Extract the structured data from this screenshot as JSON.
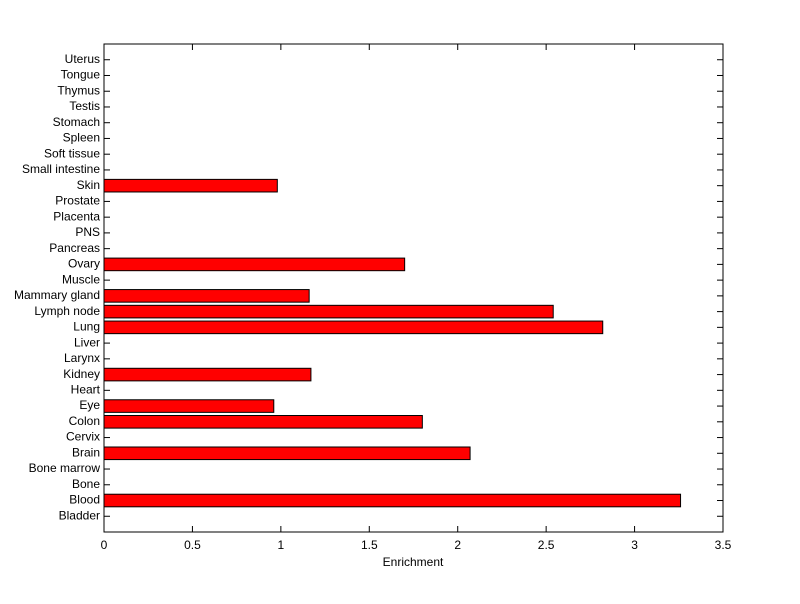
{
  "chart_data": {
    "type": "hbar",
    "xlabel": "Enrichment",
    "categories": [
      "Bladder",
      "Blood",
      "Bone",
      "Bone marrow",
      "Brain",
      "Cervix",
      "Colon",
      "Eye",
      "Heart",
      "Kidney",
      "Larynx",
      "Liver",
      "Lung",
      "Lymph node",
      "Mammary gland",
      "Muscle",
      "Ovary",
      "Pancreas",
      "PNS",
      "Placenta",
      "Prostate",
      "Skin",
      "Small intestine",
      "Soft tissue",
      "Spleen",
      "Stomach",
      "Testis",
      "Thymus",
      "Tongue",
      "Uterus"
    ],
    "values": [
      0,
      3.26,
      0,
      0,
      2.07,
      0,
      1.8,
      0.96,
      0,
      1.17,
      0,
      0,
      2.82,
      2.54,
      1.16,
      0,
      1.7,
      0,
      0,
      0,
      0,
      0.98,
      0,
      0,
      0,
      0,
      0,
      0,
      0,
      0
    ],
    "color": "#ff0000",
    "xlim": [
      0,
      3.5
    ],
    "xticks": [
      0,
      0.5,
      1,
      1.5,
      2,
      2.5,
      3,
      3.5
    ]
  }
}
